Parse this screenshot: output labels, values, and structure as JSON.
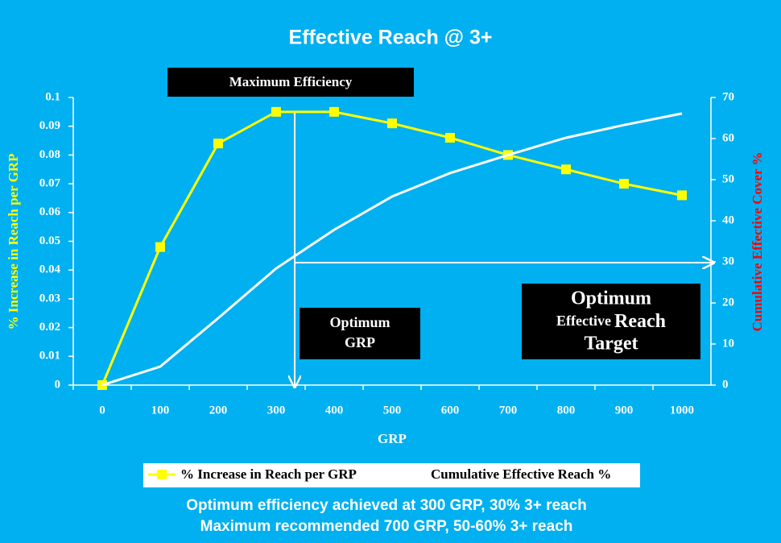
{
  "chart_data": {
    "type": "line",
    "title": "Effective Reach @ 3+",
    "categories": [
      "0",
      "100",
      "200",
      "300",
      "400",
      "500",
      "600",
      "700",
      "800",
      "900",
      "1000"
    ],
    "series": [
      {
        "name": "% Increase in Reach per GRP",
        "color": "#ffff00",
        "axis": "y",
        "marker": "square",
        "values": [
          0,
          0.048,
          0.084,
          0.095,
          0.095,
          0.091,
          0.086,
          0.08,
          0.075,
          0.07,
          0.066
        ]
      },
      {
        "name": "Cumulative Effective Reach %",
        "color": "#ffffff",
        "axis": "y2",
        "values": [
          0,
          4.5,
          16.3,
          28.4,
          37.8,
          45.9,
          51.6,
          56,
          60.2,
          63.3,
          66.1
        ]
      }
    ],
    "ylim": [
      0,
      0.1
    ],
    "yticks": [
      0,
      0.01,
      0.02,
      0.03,
      0.04,
      0.05,
      0.06,
      0.07,
      0.08,
      0.09,
      0.1
    ],
    "y2lim": [
      0,
      70
    ],
    "y2ticks": [
      0,
      10,
      20,
      30,
      40,
      50,
      60,
      70
    ],
    "x_label": "GRP",
    "y_label": "% Increase in Reach  per GRP",
    "y2_label": "Cumulative Effective Cover %",
    "annotations": [
      {
        "lines": [
          "Maximum Efficiency"
        ]
      },
      {
        "lines": [
          "Optimum",
          "GRP"
        ]
      },
      {
        "lines": [
          "Optimum",
          "Effective",
          "Reach",
          "Target"
        ]
      }
    ],
    "notes": [
      "Optimum efficiency achieved at 300 GRP, 30% 3+ reach",
      "Maximum recommended 700 GRP, 50-60% 3+ reach"
    ]
  }
}
